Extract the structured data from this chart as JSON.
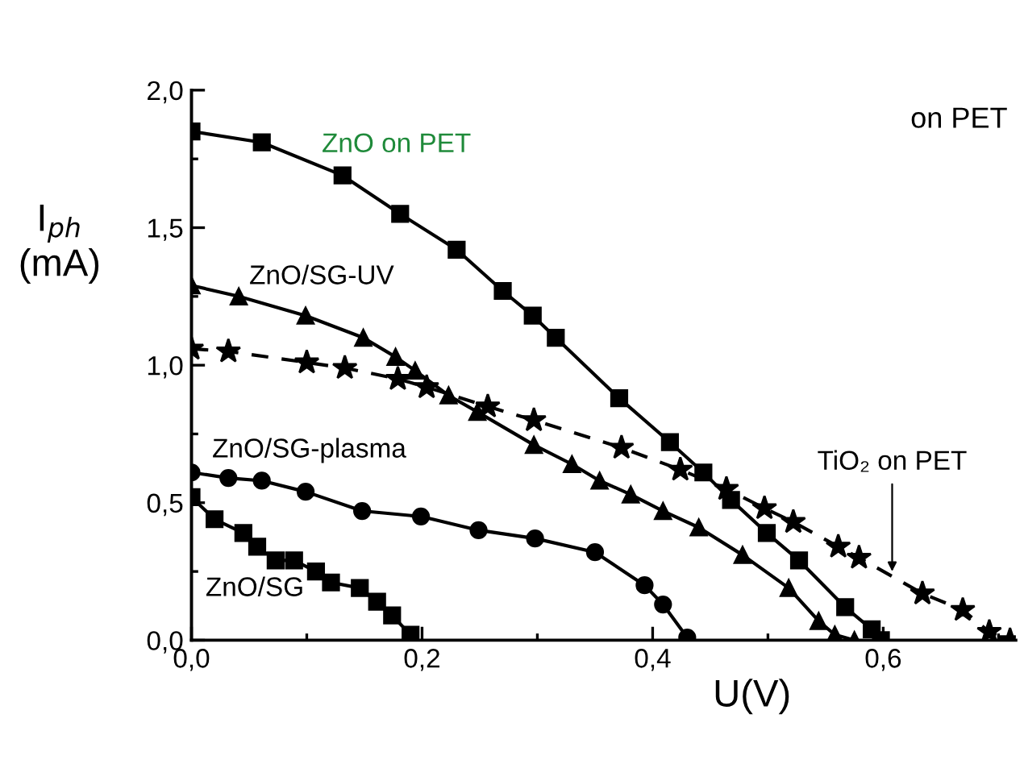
{
  "chart_data": {
    "type": "line",
    "xlabel": "U(V)",
    "ylabel": "I$_{ph}$\n(mA)",
    "xlim": [
      0,
      0.715
    ],
    "ylim": [
      0,
      2.0
    ],
    "xticks": [
      {
        "value": 0,
        "label": "0,0"
      },
      {
        "value": 0.2,
        "label": "0,2"
      },
      {
        "value": 0.4,
        "label": "0,4"
      },
      {
        "value": 0.6,
        "label": "0,6"
      }
    ],
    "yticks": [
      {
        "value": 0,
        "label": "0,0"
      },
      {
        "value": 0.5,
        "label": "0,5"
      },
      {
        "value": 1.0,
        "label": "1,0"
      },
      {
        "value": 1.5,
        "label": "1,5"
      },
      {
        "value": 2.0,
        "label": "2,0"
      }
    ],
    "grid": false,
    "legend": false,
    "annotations": [
      "on PET"
    ],
    "series": [
      {
        "name": "ZnO on PET",
        "color": "#000000",
        "marker": "square",
        "line_style": "solid",
        "x": [
          0,
          0.061,
          0.131,
          0.181,
          0.23,
          0.27,
          0.296,
          0.316,
          0.371,
          0.415,
          0.444,
          0.468,
          0.499,
          0.527,
          0.567,
          0.59,
          0.598
        ],
        "values": [
          1.85,
          1.81,
          1.69,
          1.55,
          1.42,
          1.27,
          1.18,
          1.1,
          0.88,
          0.72,
          0.61,
          0.51,
          0.39,
          0.29,
          0.12,
          0.04,
          0.0
        ]
      },
      {
        "name": "ZnO/SG-UV",
        "color": "#000000",
        "marker": "triangle",
        "line_style": "solid",
        "x": [
          0,
          0.041,
          0.099,
          0.149,
          0.177,
          0.194,
          0.223,
          0.248,
          0.297,
          0.33,
          0.354,
          0.381,
          0.409,
          0.44,
          0.478,
          0.518,
          0.544,
          0.558,
          0.575
        ],
        "values": [
          1.29,
          1.25,
          1.18,
          1.1,
          1.03,
          0.98,
          0.89,
          0.83,
          0.71,
          0.64,
          0.58,
          0.53,
          0.47,
          0.41,
          0.31,
          0.19,
          0.07,
          0.02,
          0.0
        ]
      },
      {
        "name": "TiO₂ on PET",
        "color": "#000000",
        "marker": "star",
        "line_style": "dashed",
        "x": [
          0,
          0.032,
          0.1,
          0.133,
          0.179,
          0.204,
          0.257,
          0.297,
          0.373,
          0.424,
          0.464,
          0.497,
          0.522,
          0.561,
          0.579,
          0.634,
          0.669,
          0.692,
          0.71
        ],
        "values": [
          1.06,
          1.05,
          1.01,
          0.99,
          0.95,
          0.92,
          0.85,
          0.8,
          0.7,
          0.62,
          0.55,
          0.48,
          0.43,
          0.34,
          0.3,
          0.17,
          0.11,
          0.03,
          0.0
        ]
      },
      {
        "name": "ZnO/SG-plasma",
        "color": "#000000",
        "marker": "circle",
        "line_style": "solid",
        "x": [
          0,
          0.032,
          0.061,
          0.099,
          0.148,
          0.199,
          0.249,
          0.298,
          0.35,
          0.393,
          0.409,
          0.43
        ],
        "values": [
          0.61,
          0.59,
          0.58,
          0.54,
          0.47,
          0.45,
          0.4,
          0.37,
          0.32,
          0.2,
          0.13,
          0.01
        ]
      },
      {
        "name": "ZnO/SG",
        "color": "#000000",
        "marker": "square",
        "line_style": "solid",
        "x": [
          0,
          0.02,
          0.045,
          0.057,
          0.073,
          0.089,
          0.108,
          0.121,
          0.146,
          0.161,
          0.174,
          0.19
        ],
        "values": [
          0.52,
          0.44,
          0.39,
          0.34,
          0.29,
          0.29,
          0.25,
          0.21,
          0.19,
          0.14,
          0.09,
          0.02
        ]
      }
    ]
  }
}
